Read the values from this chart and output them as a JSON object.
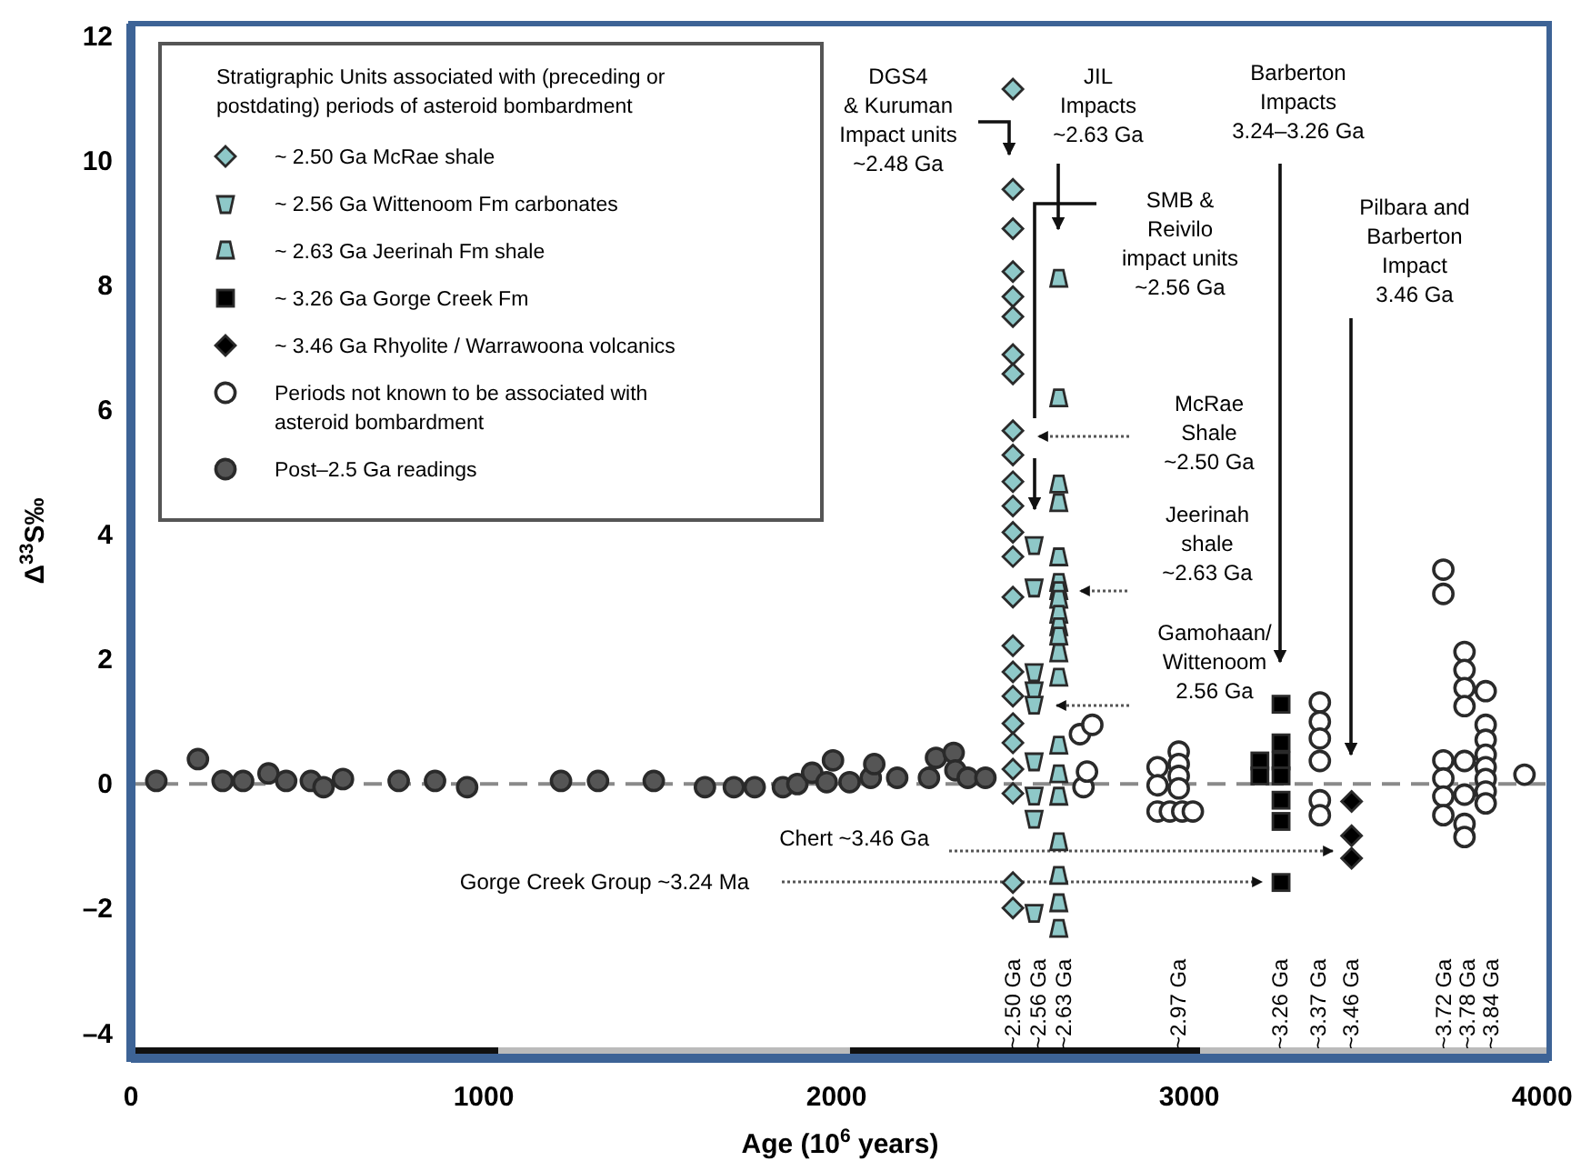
{
  "chart_data": {
    "type": "scatter",
    "xlabel": "Age (10$^{6}$ years)",
    "ylabel": "Δ$^{33}$S‰",
    "legend_title": "Stratigraphic Units associated with (preceding or postdating) periods of asteroid bombardment",
    "legend": "top left",
    "xlim": [
      0,
      4020
    ],
    "ylim": [
      -4.4,
      12.2
    ],
    "xticks": [
      0,
      1000,
      2000,
      3000,
      4000
    ],
    "yticks": [
      {
        "value": -4,
        "label": "–4"
      },
      {
        "value": -2,
        "label": "–2"
      },
      0,
      2,
      4,
      6,
      8,
      10,
      12
    ],
    "ref_lines": [
      {
        "axis": "y",
        "value": 0,
        "color": "#8a8a8a",
        "line_style": "dashed"
      }
    ],
    "series": [
      {
        "name": "~ 2.50 Ga McRae shale",
        "color": "#8ec8c8",
        "marker": "diamond",
        "x": [
          2500,
          2500,
          2500,
          2500,
          2500,
          2500,
          2500,
          2500,
          2500,
          2500,
          2500,
          2500,
          2500,
          2500,
          2500,
          2500,
          2500,
          2500,
          2500,
          2500,
          2500,
          2500,
          2500,
          2500
        ],
        "values": [
          11.15,
          9.54,
          8.91,
          8.22,
          7.82,
          7.5,
          6.89,
          6.58,
          5.67,
          5.28,
          4.85,
          4.46,
          4.04,
          3.65,
          3.0,
          2.22,
          1.8,
          1.41,
          0.97,
          0.66,
          0.24,
          -0.15,
          -1.58,
          -1.99
        ]
      },
      {
        "name": "~ 2.56 Ga Wittenoom Fm carbonates",
        "color": "#8ec8c8",
        "x": [
          2560,
          2560,
          2560,
          2560,
          2560,
          2560,
          2560,
          2560,
          2560
        ],
        "values": [
          3.84,
          3.16,
          1.8,
          1.51,
          1.28,
          0.37,
          -0.18,
          -0.55,
          -2.06
        ]
      },
      {
        "name": "~ 2.63 Ga Jeerinah Fm shale",
        "color": "#8ec8c8",
        "x": [
          2630,
          2630,
          2630,
          2630,
          2630,
          2630,
          2630,
          2630,
          2630,
          2630,
          2630,
          2630,
          2630,
          2630,
          2630,
          2630,
          2630,
          2630,
          2630,
          2630
        ],
        "values": [
          8.1,
          6.18,
          4.8,
          4.5,
          3.63,
          3.22,
          3.09,
          2.95,
          2.71,
          2.51,
          2.36,
          2.09,
          1.7,
          0.61,
          0.15,
          -0.21,
          -0.94,
          -1.48,
          -1.92,
          -2.33
        ]
      },
      {
        "name": "~ 3.26 Ga Gorge Creek Fm",
        "color": "#000000",
        "marker": "square",
        "x": [
          3260,
          3260,
          3260,
          3260,
          3260,
          3260,
          3260,
          3200,
          3200
        ],
        "values": [
          1.28,
          0.66,
          0.37,
          0.13,
          -0.26,
          -0.6,
          -1.58,
          0.37,
          0.13
        ]
      },
      {
        "name": "~ 3.46 Ga Rhyolite / Warrawoona volcanics",
        "color": "#000000",
        "marker": "diamond",
        "x": [
          3460,
          3460,
          3460
        ],
        "values": [
          -0.28,
          -0.83,
          -1.19
        ]
      },
      {
        "name": "Periods not known to be associated with asteroid bombardment",
        "color": "#ffffff",
        "marker": "circle",
        "x": [
          2690,
          2725,
          2700,
          2710,
          2970,
          2970,
          2910,
          2970,
          2910,
          2970,
          2910,
          2945,
          2980,
          3010,
          3370,
          3370,
          3370,
          3370,
          3370,
          3370,
          3720,
          3720,
          3720,
          3720,
          3720,
          3720,
          3780,
          3780,
          3780,
          3780,
          3780,
          3780,
          3780,
          3780,
          3840,
          3840,
          3840,
          3840,
          3840,
          3840,
          3840,
          3840,
          3950
        ],
        "values": [
          0.8,
          0.95,
          -0.05,
          0.2,
          0.52,
          0.32,
          0.27,
          0.13,
          -0.02,
          -0.07,
          -0.44,
          -0.44,
          -0.44,
          -0.44,
          1.31,
          1.0,
          0.73,
          0.37,
          -0.26,
          -0.5,
          3.44,
          3.05,
          0.38,
          0.09,
          -0.2,
          -0.5,
          2.12,
          1.83,
          1.54,
          1.25,
          0.37,
          -0.17,
          -0.64,
          -0.85,
          1.49,
          0.95,
          0.71,
          0.47,
          0.27,
          0.08,
          -0.12,
          -0.31,
          0.15
        ]
      },
      {
        "name": "Post–2.5 Ga readings",
        "color": "#555555",
        "marker": "circle",
        "x": [
          72,
          190,
          260,
          318,
          390,
          440,
          510,
          546,
          601,
          759,
          862,
          953,
          1219,
          1324,
          1482,
          1627,
          1709,
          1768,
          1848,
          1889,
          1931,
          1972,
          1990,
          2037,
          2097,
          2107,
          2172,
          2262,
          2282,
          2332,
          2337,
          2372,
          2422
        ],
        "values": [
          0.05,
          0.4,
          0.05,
          0.05,
          0.17,
          0.05,
          0.05,
          -0.05,
          0.08,
          0.05,
          0.05,
          -0.05,
          0.05,
          0.05,
          0.05,
          -0.05,
          -0.05,
          -0.05,
          -0.05,
          0,
          0.18,
          0.03,
          0.38,
          0.03,
          0.1,
          0.32,
          0.1,
          0.1,
          0.42,
          0.5,
          0.22,
          0.1,
          0.1
        ]
      }
    ],
    "annotations": [
      "DGS4\n& Kuruman\nImpact units\n~2.48 Ga",
      "JIL\nImpacts\n~2.63 Ga",
      "Barberton\nImpacts\n3.24–3.26 Ga",
      "SMB &\nReivilo\nimpact units\n~2.56 Ga",
      "Pilbara and\nBarberton\nImpact\n3.46 Ga",
      "McRae\nShale\n~2.50 Ga",
      "Jeerinah\nshale\n~2.63 Ga",
      "Gamohaan/\nWittenoom\n2.56 Ga",
      "Chert ~3.46 Ga",
      "Gorge Creek Group ~3.24 Ma",
      "~2.50 Ga",
      "~2.56 Ga",
      "~2.63 Ga",
      "~2.97 Ga",
      "~3.26 Ga",
      "~3.37 Ga",
      "~3.46 Ga",
      "~3.72 Ga",
      "~3.78 Ga",
      "~3.84 Ga"
    ]
  }
}
